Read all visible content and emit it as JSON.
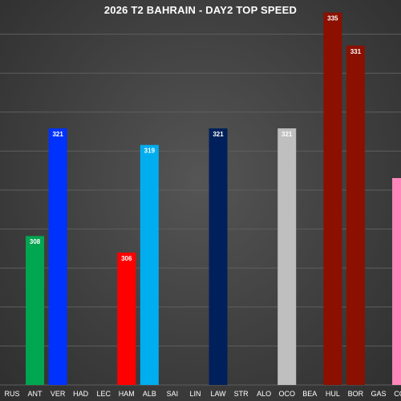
{
  "chart_data": {
    "type": "bar",
    "title": "2026 T2 BAHRAIN - DAY2 TOP SPEED",
    "xlabel": "",
    "ylabel": "",
    "ylim": [
      290,
      337
    ],
    "grid": true,
    "categories": [
      "RUS",
      "ANT",
      "VER",
      "HAD",
      "LEC",
      "HAM",
      "ALB",
      "SAI",
      "LIN",
      "LAW",
      "STR",
      "ALO",
      "OCO",
      "BEA",
      "HUL",
      "BOR",
      "GAS",
      "COL"
    ],
    "values": [
      null,
      308,
      321,
      null,
      null,
      306,
      319,
      null,
      null,
      321,
      null,
      null,
      321,
      null,
      335,
      331,
      null,
      315
    ],
    "labels": [
      "",
      "308",
      "321",
      "",
      "",
      "306",
      "319",
      "",
      "",
      "321",
      "",
      "",
      "321",
      "",
      "335",
      "331",
      "",
      ""
    ],
    "colors": [
      "#00a19b",
      "#00a650",
      "#0032ff",
      "#1534cc",
      "#e8002d",
      "#ff0000",
      "#00aeef",
      "#005aff",
      "#1634cc",
      "#00205b",
      "#006f62",
      "#006f62",
      "#bfbfbf",
      "#bfbfbf",
      "#8b1000",
      "#8b1000",
      "#ff87bc",
      "#ff87bc"
    ]
  }
}
